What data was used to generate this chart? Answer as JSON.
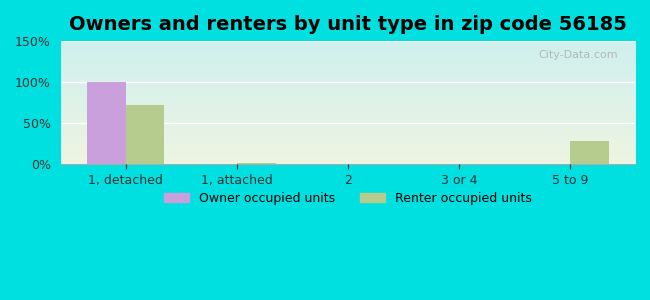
{
  "title": "Owners and renters by unit type in zip code 56185",
  "categories": [
    "1, detached",
    "1, attached",
    "2",
    "3 or 4",
    "5 to 9"
  ],
  "owner_values": [
    100,
    0,
    0,
    0,
    0
  ],
  "renter_values": [
    72,
    1,
    0,
    0,
    28
  ],
  "owner_color": "#c9a0dc",
  "renter_color": "#b5cc8e",
  "ylim": [
    0,
    150
  ],
  "yticks": [
    0,
    50,
    100,
    150
  ],
  "ytick_labels": [
    "0%",
    "50%",
    "100%",
    "150%"
  ],
  "bar_width": 0.35,
  "bg_top": "#cff0ee",
  "bg_bottom": "#eef5e2",
  "outer_bg": "#00e0e0",
  "title_fontsize": 14,
  "legend_labels": [
    "Owner occupied units",
    "Renter occupied units"
  ],
  "watermark": "City-Data.com"
}
